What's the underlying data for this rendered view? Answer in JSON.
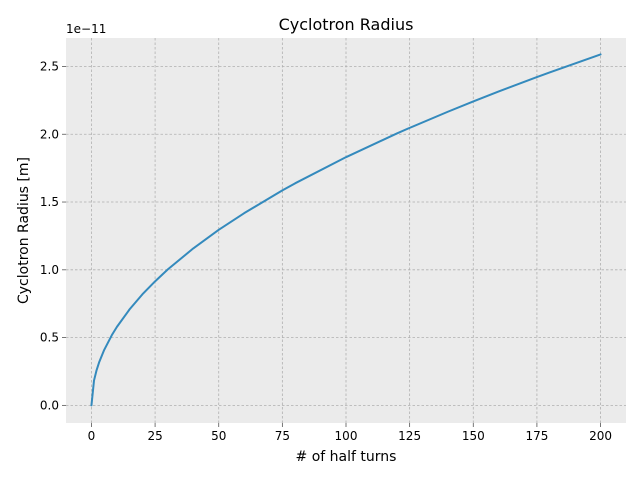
{
  "chart_data": {
    "type": "line",
    "title": "Cyclotron Radius",
    "xlabel": "# of half turns",
    "ylabel": "Cyclotron Radius [m]",
    "y_offset_text": "1e−11",
    "xlim": [
      -10,
      210
    ],
    "ylim": [
      -0.13,
      2.71
    ],
    "y_scale_factor": 1e-11,
    "x_ticks": [
      0,
      25,
      50,
      75,
      100,
      125,
      150,
      175,
      200
    ],
    "x_tick_labels": [
      "0",
      "25",
      "50",
      "75",
      "100",
      "125",
      "150",
      "175",
      "200"
    ],
    "y_ticks": [
      0.0,
      0.5,
      1.0,
      1.5,
      2.0,
      2.5
    ],
    "y_tick_labels": [
      "0.0",
      "0.5",
      "1.0",
      "1.5",
      "2.0",
      "2.5"
    ],
    "grid": true,
    "colors": {
      "background": "#ebebeb",
      "grid": "#b0b0b0",
      "line": "#348abd",
      "spine": "#bcbcbc"
    },
    "series": [
      {
        "x": [
          0,
          1,
          2,
          3,
          5,
          8,
          10,
          15,
          20,
          25,
          30,
          40,
          50,
          60,
          75,
          80,
          100,
          120,
          125,
          140,
          150,
          160,
          175,
          180,
          200
        ],
        "y": [
          0.0,
          0.183,
          0.259,
          0.317,
          0.409,
          0.518,
          0.579,
          0.709,
          0.819,
          0.915,
          1.003,
          1.158,
          1.295,
          1.418,
          1.586,
          1.638,
          1.831,
          2.006,
          2.047,
          2.166,
          2.242,
          2.316,
          2.422,
          2.456,
          2.589
        ]
      }
    ]
  }
}
